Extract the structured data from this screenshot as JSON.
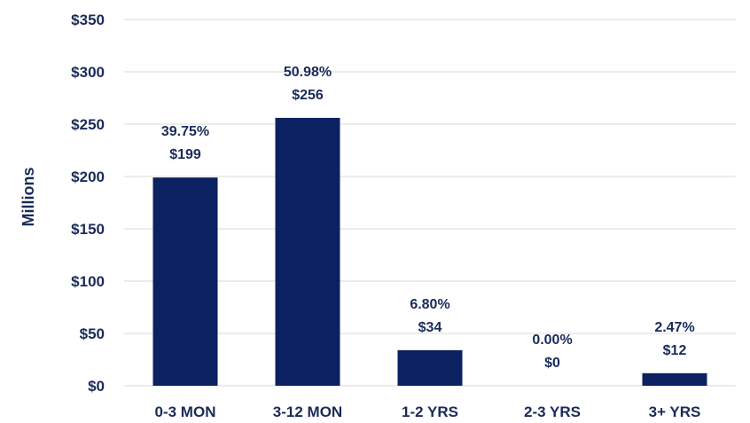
{
  "chart_data": {
    "type": "bar",
    "categories": [
      "0-3 MON",
      "3-12 MON",
      "1-2 YRS",
      "2-3 YRS",
      "3+ YRS"
    ],
    "values": [
      199,
      256,
      34,
      0,
      12
    ],
    "percent_labels": [
      "39.75%",
      "50.98%",
      "6.80%",
      "0.00%",
      "2.47%"
    ],
    "value_labels": [
      "$199",
      "$256",
      "$34",
      "$0",
      "$12"
    ],
    "ylabel": "Millions",
    "ylim": [
      0,
      350
    ],
    "yticks": [
      0,
      50,
      100,
      150,
      200,
      250,
      300,
      350
    ],
    "ytick_labels": [
      "$0",
      "$50",
      "$100",
      "$150",
      "$200",
      "$250",
      "$300",
      "$350"
    ],
    "bar_color": "#0b2161",
    "grid": true
  }
}
